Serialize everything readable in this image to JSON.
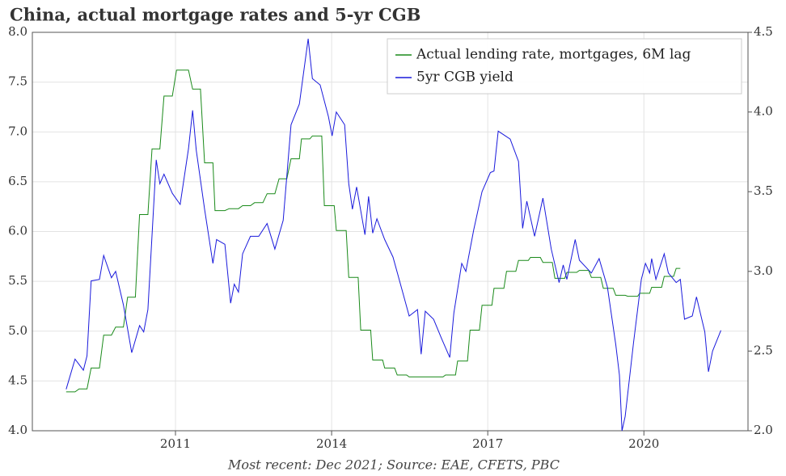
{
  "chart_data": {
    "type": "line",
    "title": "China, actual mortgage rates and 5-yr CGB",
    "caption": "Most recent: Dec 2021; Source: EAE, CFETS, PBC",
    "xlim": [
      2008.25,
      2022
    ],
    "xticks": [
      2011,
      2014,
      2017,
      2020
    ],
    "ylim": [
      4,
      8
    ],
    "yticks": [
      {
        "value": 4,
        "label": "4.0"
      },
      4.5,
      {
        "value": 5,
        "label": "5.0"
      },
      5.5,
      {
        "value": 6,
        "label": "6.0"
      },
      6.5,
      {
        "value": 7,
        "label": "7.0"
      },
      7.5,
      {
        "value": 8,
        "label": "8.0"
      }
    ],
    "y2lim": [
      2,
      4.5
    ],
    "y2ticks": [
      {
        "value": 2,
        "label": "2.0"
      },
      2.5,
      {
        "value": 3,
        "label": "3.0"
      },
      3.5,
      {
        "value": 4,
        "label": "4.0"
      },
      4.5
    ],
    "grid": true,
    "legend": "upper right",
    "series": [
      {
        "name": "Actual lending rate, mortgages, 6M lag",
        "color": "#1a8a1a",
        "axis": "y",
        "x": [
          2008.9,
          2009.07,
          2009.15,
          2009.3,
          2009.38,
          2009.54,
          2009.62,
          2009.77,
          2009.85,
          2010.0,
          2010.08,
          2010.23,
          2010.31,
          2010.47,
          2010.55,
          2010.7,
          2010.78,
          2010.94,
          2011.02,
          2011.25,
          2011.33,
          2011.48,
          2011.56,
          2011.72,
          2011.76,
          2011.95,
          2012.03,
          2012.21,
          2012.29,
          2012.44,
          2012.52,
          2012.68,
          2012.76,
          2012.91,
          2012.99,
          2013.14,
          2013.22,
          2013.38,
          2013.42,
          2013.58,
          2013.63,
          2013.81,
          2013.86,
          2014.05,
          2014.09,
          2014.28,
          2014.33,
          2014.51,
          2014.56,
          2014.75,
          2014.79,
          2014.98,
          2015.02,
          2015.21,
          2015.26,
          2015.44,
          2015.49,
          2016.14,
          2016.19,
          2016.38,
          2016.42,
          2016.61,
          2016.66,
          2016.84,
          2016.89,
          2017.08,
          2017.12,
          2017.31,
          2017.36,
          2017.54,
          2017.59,
          2017.78,
          2017.82,
          2018.01,
          2018.06,
          2018.24,
          2018.29,
          2018.48,
          2018.52,
          2018.71,
          2018.76,
          2018.94,
          2018.99,
          2019.17,
          2019.22,
          2019.41,
          2019.46,
          2019.64,
          2019.69,
          2019.88,
          2019.92,
          2020.11,
          2020.15,
          2020.34,
          2020.39,
          2020.57,
          2020.62,
          2020.7
        ],
        "values": [
          4.39,
          4.39,
          4.42,
          4.42,
          4.63,
          4.63,
          4.96,
          4.96,
          5.04,
          5.04,
          5.34,
          5.34,
          6.17,
          6.17,
          6.83,
          6.83,
          7.36,
          7.36,
          7.62,
          7.62,
          7.43,
          7.43,
          6.69,
          6.69,
          6.21,
          6.21,
          6.23,
          6.23,
          6.26,
          6.26,
          6.29,
          6.29,
          6.38,
          6.38,
          6.53,
          6.53,
          6.73,
          6.73,
          6.93,
          6.93,
          6.96,
          6.96,
          6.26,
          6.26,
          6.01,
          6.01,
          5.54,
          5.54,
          5.01,
          5.01,
          4.71,
          4.71,
          4.63,
          4.63,
          4.56,
          4.56,
          4.54,
          4.54,
          4.56,
          4.56,
          4.7,
          4.7,
          5.01,
          5.01,
          5.26,
          5.26,
          5.43,
          5.43,
          5.6,
          5.6,
          5.71,
          5.71,
          5.74,
          5.74,
          5.69,
          5.69,
          5.53,
          5.53,
          5.59,
          5.59,
          5.61,
          5.61,
          5.54,
          5.54,
          5.43,
          5.43,
          5.36,
          5.36,
          5.35,
          5.35,
          5.38,
          5.38,
          5.44,
          5.44,
          5.55,
          5.55,
          5.63,
          5.63
        ]
      },
      {
        "name": "5yr CGB yield",
        "color": "#1a1adc",
        "axis": "y2",
        "x": [
          2008.9,
          2009.07,
          2009.23,
          2009.3,
          2009.38,
          2009.54,
          2009.62,
          2009.77,
          2009.85,
          2010.0,
          2010.16,
          2010.31,
          2010.39,
          2010.47,
          2010.63,
          2010.7,
          2010.78,
          2010.94,
          2011.09,
          2011.25,
          2011.33,
          2011.4,
          2011.56,
          2011.72,
          2011.79,
          2011.95,
          2012.06,
          2012.13,
          2012.21,
          2012.29,
          2012.44,
          2012.6,
          2012.76,
          2012.91,
          2013.07,
          2013.22,
          2013.38,
          2013.55,
          2013.63,
          2013.78,
          2013.94,
          2014.01,
          2014.09,
          2014.25,
          2014.33,
          2014.4,
          2014.48,
          2014.64,
          2014.71,
          2014.79,
          2014.87,
          2015.02,
          2015.18,
          2015.34,
          2015.49,
          2015.65,
          2015.72,
          2015.8,
          2015.96,
          2016.11,
          2016.27,
          2016.35,
          2016.5,
          2016.58,
          2016.73,
          2016.89,
          2017.05,
          2017.12,
          2017.2,
          2017.43,
          2017.59,
          2017.67,
          2017.75,
          2017.9,
          2018.06,
          2018.22,
          2018.37,
          2018.45,
          2018.52,
          2018.68,
          2018.76,
          2018.99,
          2019.14,
          2019.3,
          2019.46,
          2019.53,
          2019.58,
          2019.64,
          2019.8,
          2019.95,
          2020.03,
          2020.11,
          2020.15,
          2020.23,
          2020.39,
          2020.47,
          2020.62,
          2020.7,
          2020.78,
          2020.93,
          2021.01,
          2021.17,
          2021.24,
          2021.32,
          2021.48
        ],
        "values": [
          2.26,
          2.45,
          2.38,
          2.47,
          2.94,
          2.95,
          3.1,
          2.96,
          3.0,
          2.79,
          2.49,
          2.66,
          2.62,
          2.76,
          3.7,
          3.55,
          3.61,
          3.49,
          3.42,
          3.77,
          4.01,
          3.76,
          3.39,
          3.05,
          3.2,
          3.17,
          2.8,
          2.92,
          2.87,
          3.11,
          3.22,
          3.22,
          3.3,
          3.14,
          3.32,
          3.92,
          4.05,
          4.46,
          4.21,
          4.17,
          3.97,
          3.85,
          4.0,
          3.92,
          3.55,
          3.39,
          3.53,
          3.23,
          3.47,
          3.24,
          3.33,
          3.2,
          3.09,
          2.9,
          2.72,
          2.76,
          2.48,
          2.75,
          2.7,
          2.58,
          2.46,
          2.74,
          3.05,
          3.0,
          3.26,
          3.5,
          3.62,
          3.63,
          3.88,
          3.83,
          3.69,
          3.27,
          3.44,
          3.22,
          3.46,
          3.14,
          2.93,
          3.04,
          2.95,
          3.2,
          3.07,
          2.99,
          3.08,
          2.9,
          2.54,
          2.35,
          2.0,
          2.09,
          2.55,
          2.95,
          3.05,
          2.99,
          3.08,
          2.95,
          3.11,
          2.99,
          2.93,
          2.95,
          2.7,
          2.72,
          2.84,
          2.62,
          2.37,
          2.5,
          2.63
        ]
      }
    ]
  }
}
